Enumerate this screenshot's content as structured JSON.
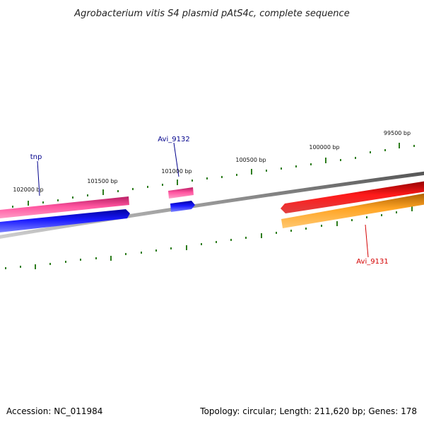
{
  "title": "Agrobacterium vitis S4 plasmid pAtS4c, complete sequence",
  "footer": {
    "accession": "Accession: NC_011984",
    "summary": "Topology: circular; Length: 211,620 bp; Genes: 178"
  },
  "scale_labels": [
    "102000 bp",
    "101500 bp",
    "101000 bp",
    "100500 bp",
    "100000 bp",
    "99500 bp"
  ],
  "gene_labels": [
    {
      "name": "tnp",
      "color": "#00008b"
    },
    {
      "name": "Avi_9132",
      "color": "#00008b"
    },
    {
      "name": "Avi_9131",
      "color": "#d40000"
    }
  ],
  "colors": {
    "backbone": "#7f7f7f",
    "ticks": "#2e7d1e",
    "magenta": "#e0357f",
    "blue": "#0a10e8",
    "red": "#e00000",
    "orange": "#f5920f"
  }
}
